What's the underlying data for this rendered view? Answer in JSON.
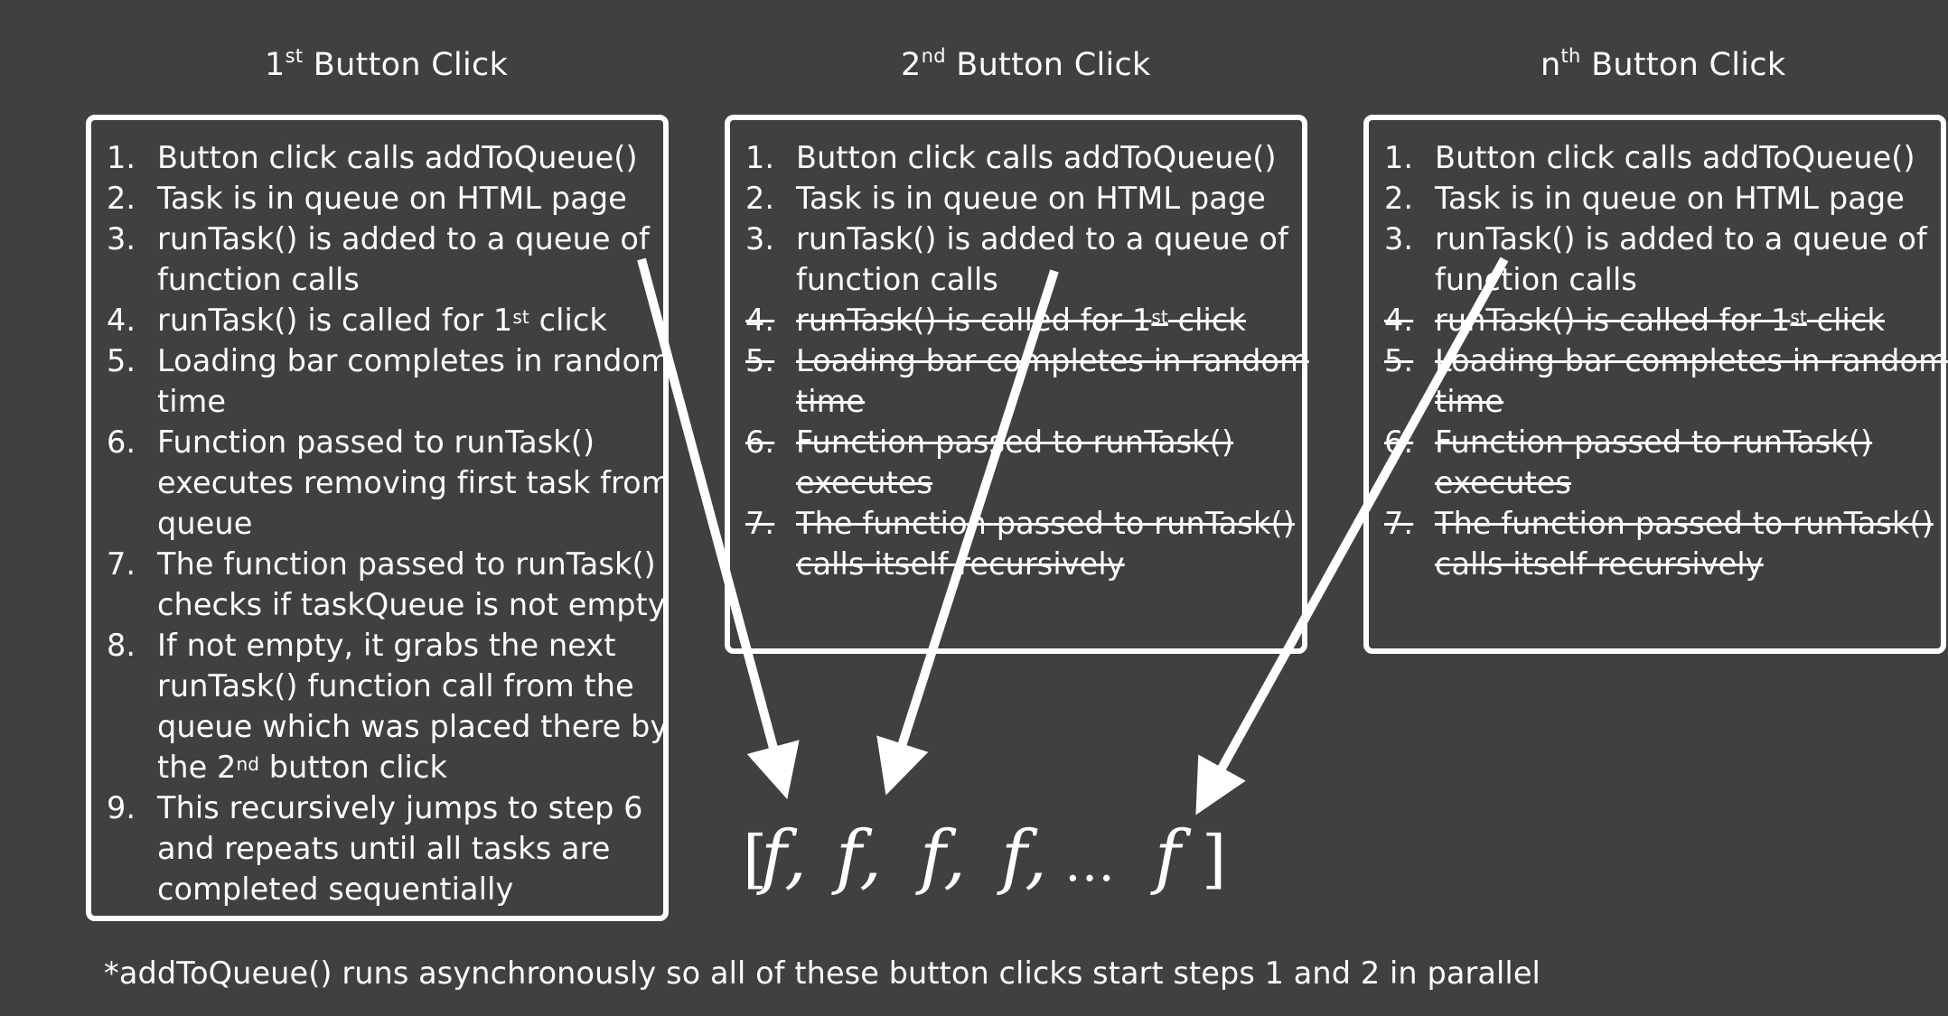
{
  "columns": [
    {
      "title_prefix": "1",
      "title_sup": "st",
      "title_suffix": " Button Click",
      "steps": [
        {
          "num": "1.",
          "lines": [
            "Button click calls addToQueue()"
          ],
          "struck": false
        },
        {
          "num": "2.",
          "lines": [
            "Task is in queue on HTML page"
          ],
          "struck": false
        },
        {
          "num": "3.",
          "lines": [
            "runTask() is added to a queue of",
            "function calls"
          ],
          "struck": false
        },
        {
          "num": "4.",
          "lines": [
            "runTask() is called for 1|st| click"
          ],
          "struck": false
        },
        {
          "num": "5.",
          "lines": [
            "Loading bar completes in random",
            "time"
          ],
          "struck": false
        },
        {
          "num": "6.",
          "lines": [
            "Function passed to runTask()",
            "executes removing first task from",
            "queue"
          ],
          "struck": false
        },
        {
          "num": "7.",
          "lines": [
            "The function passed to runTask()",
            "checks if taskQueue is not empty"
          ],
          "struck": false
        },
        {
          "num": "8.",
          "lines": [
            "If not empty, it grabs the next",
            "runTask() function call from the",
            "queue which was placed there by",
            "the 2|nd| button click"
          ],
          "struck": false
        },
        {
          "num": "9.",
          "lines": [
            "This recursively jumps to step 6",
            "and repeats until all tasks are",
            "completed sequentially"
          ],
          "struck": false
        }
      ]
    },
    {
      "title_prefix": "2",
      "title_sup": "nd",
      "title_suffix": " Button Click",
      "steps": [
        {
          "num": "1.",
          "lines": [
            "Button click calls addToQueue()"
          ],
          "struck": false
        },
        {
          "num": "2.",
          "lines": [
            "Task is in queue on HTML page"
          ],
          "struck": false
        },
        {
          "num": "3.",
          "lines": [
            "runTask() is added to a queue of",
            "function calls"
          ],
          "struck": false
        },
        {
          "num": "4.",
          "lines": [
            "runTask() is called for 1|st| click"
          ],
          "struck": true
        },
        {
          "num": "5.",
          "lines": [
            "Loading bar completes in random",
            "time"
          ],
          "struck": true
        },
        {
          "num": "6.",
          "lines": [
            "Function passed to runTask()",
            "executes"
          ],
          "struck": true
        },
        {
          "num": "7.",
          "lines": [
            "The function passed to runTask()",
            "calls itself recursively"
          ],
          "struck": true
        }
      ]
    },
    {
      "title_prefix": "n",
      "title_sup": "th",
      "title_suffix": " Button Click",
      "steps": [
        {
          "num": "1.",
          "lines": [
            "Button click calls addToQueue()"
          ],
          "struck": false
        },
        {
          "num": "2.",
          "lines": [
            "Task is in queue on HTML page"
          ],
          "struck": false
        },
        {
          "num": "3.",
          "lines": [
            "runTask() is added to a queue of",
            "function calls"
          ],
          "struck": false
        },
        {
          "num": "4.",
          "lines": [
            "runTask() is called for 1|st| click"
          ],
          "struck": true
        },
        {
          "num": "5.",
          "lines": [
            "Loading bar completes in random",
            "time"
          ],
          "struck": true
        },
        {
          "num": "6.",
          "lines": [
            "Function passed to runTask()",
            "executes"
          ],
          "struck": true
        },
        {
          "num": "7.",
          "lines": [
            "The function passed to runTask()",
            "calls itself recursively"
          ],
          "struck": true
        }
      ]
    }
  ],
  "queue": {
    "open": "[",
    "items": [
      "f,",
      "f,",
      "f,",
      "f,",
      "…",
      "f"
    ],
    "close": "]"
  },
  "footnote": "*addToQueue() runs asynchronously so all of these button clicks start steps 1 and 2 in parallel",
  "colors": {
    "background": "#404040",
    "foreground": "#ffffff"
  }
}
